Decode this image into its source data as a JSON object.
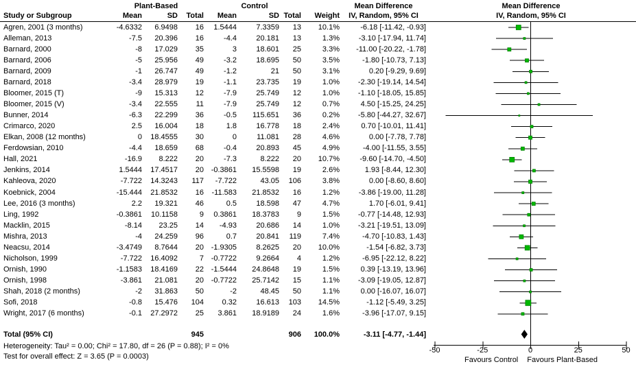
{
  "header": {
    "group1": "Plant-Based",
    "group2": "Control",
    "col_study": "Study or Subgroup",
    "col_mean": "Mean",
    "col_sd": "SD",
    "col_total": "Total",
    "col_weight": "Weight",
    "md_title": "Mean Difference",
    "md_subtitle": "IV, Random, 95% CI",
    "plot_title": "Mean Difference",
    "plot_subtitle": "IV, Random, 95% CI"
  },
  "table": {
    "rows": [
      {
        "study": "Agren, 2001 (3 months)",
        "mean_pb": "-4.6332",
        "sd_pb": "6.9498",
        "n_pb": "16",
        "mean_c": "1.5444",
        "sd_c": "7.3359",
        "n_c": "13",
        "weight": "10.1%",
        "md": "-6.18 [-11.42, -0.93]"
      },
      {
        "study": "Alleman, 2013",
        "mean_pb": "-7.5",
        "sd_pb": "20.396",
        "n_pb": "16",
        "mean_c": "-4.4",
        "sd_c": "20.181",
        "n_c": "13",
        "weight": "1.3%",
        "md": "-3.10 [-17.94, 11.74]"
      },
      {
        "study": "Barnard, 2000",
        "mean_pb": "-8",
        "sd_pb": "17.029",
        "n_pb": "35",
        "mean_c": "3",
        "sd_c": "18.601",
        "n_c": "25",
        "weight": "3.3%",
        "md": "-11.00 [-20.22, -1.78]"
      },
      {
        "study": "Barnard, 2006",
        "mean_pb": "-5",
        "sd_pb": "25.956",
        "n_pb": "49",
        "mean_c": "-3.2",
        "sd_c": "18.695",
        "n_c": "50",
        "weight": "3.5%",
        "md": "-1.80 [-10.73, 7.13]"
      },
      {
        "study": "Barnard, 2009",
        "mean_pb": "-1",
        "sd_pb": "26.747",
        "n_pb": "49",
        "mean_c": "-1.2",
        "sd_c": "21",
        "n_c": "50",
        "weight": "3.1%",
        "md": "0.20 [-9.29, 9.69]"
      },
      {
        "study": "Barnard, 2018",
        "mean_pb": "-3.4",
        "sd_pb": "28.979",
        "n_pb": "19",
        "mean_c": "-1.1",
        "sd_c": "23.735",
        "n_c": "19",
        "weight": "1.0%",
        "md": "-2.30 [-19.14, 14.54]"
      },
      {
        "study": "Bloomer, 2015 (T)",
        "mean_pb": "-9",
        "sd_pb": "15.313",
        "n_pb": "12",
        "mean_c": "-7.9",
        "sd_c": "25.749",
        "n_c": "12",
        "weight": "1.0%",
        "md": "-1.10 [-18.05, 15.85]"
      },
      {
        "study": "Bloomer, 2015 (V)",
        "mean_pb": "-3.4",
        "sd_pb": "22.555",
        "n_pb": "11",
        "mean_c": "-7.9",
        "sd_c": "25.749",
        "n_c": "12",
        "weight": "0.7%",
        "md": "4.50 [-15.25, 24.25]"
      },
      {
        "study": "Bunner, 2014",
        "mean_pb": "-6.3",
        "sd_pb": "22.299",
        "n_pb": "36",
        "mean_c": "-0.5",
        "sd_c": "115.651",
        "n_c": "36",
        "weight": "0.2%",
        "md": "-5.80 [-44.27, 32.67]"
      },
      {
        "study": "Crimarco, 2020",
        "mean_pb": "2.5",
        "sd_pb": "16.004",
        "n_pb": "18",
        "mean_c": "1.8",
        "sd_c": "16.778",
        "n_c": "18",
        "weight": "2.4%",
        "md": "0.70 [-10.01, 11.41]"
      },
      {
        "study": "Elkan, 2008 (12 months)",
        "mean_pb": "0",
        "sd_pb": "18.4555",
        "n_pb": "30",
        "mean_c": "0",
        "sd_c": "11.081",
        "n_c": "28",
        "weight": "4.6%",
        "md": "0.00 [-7.78, 7.78]"
      },
      {
        "study": "Ferdowsian, 2010",
        "mean_pb": "-4.4",
        "sd_pb": "18.659",
        "n_pb": "68",
        "mean_c": "-0.4",
        "sd_c": "20.893",
        "n_c": "45",
        "weight": "4.9%",
        "md": "-4.00 [-11.55, 3.55]"
      },
      {
        "study": "Hall, 2021",
        "mean_pb": "-16.9",
        "sd_pb": "8.222",
        "n_pb": "20",
        "mean_c": "-7.3",
        "sd_c": "8.222",
        "n_c": "20",
        "weight": "10.7%",
        "md": "-9.60 [-14.70, -4.50]"
      },
      {
        "study": "Jenkins, 2014",
        "mean_pb": "1.5444",
        "sd_pb": "17.4517",
        "n_pb": "20",
        "mean_c": "-0.3861",
        "sd_c": "15.5598",
        "n_c": "19",
        "weight": "2.6%",
        "md": "1.93 [-8.44, 12.30]"
      },
      {
        "study": "Kahleova, 2020",
        "mean_pb": "-7.722",
        "sd_pb": "14.3243",
        "n_pb": "117",
        "mean_c": "-7.722",
        "sd_c": "43.05",
        "n_c": "106",
        "weight": "3.8%",
        "md": "0.00 [-8.60, 8.60]"
      },
      {
        "study": "Koebnick, 2004",
        "mean_pb": "-15.444",
        "sd_pb": "21.8532",
        "n_pb": "16",
        "mean_c": "-11.583",
        "sd_c": "21.8532",
        "n_c": "16",
        "weight": "1.2%",
        "md": "-3.86 [-19.00, 11.28]"
      },
      {
        "study": "Lee, 2016 (3 months)",
        "mean_pb": "2.2",
        "sd_pb": "19.321",
        "n_pb": "46",
        "mean_c": "0.5",
        "sd_c": "18.598",
        "n_c": "47",
        "weight": "4.7%",
        "md": "1.70 [-6.01, 9.41]"
      },
      {
        "study": "Ling, 1992",
        "mean_pb": "-0.3861",
        "sd_pb": "10.1158",
        "n_pb": "9",
        "mean_c": "0.3861",
        "sd_c": "18.3783",
        "n_c": "9",
        "weight": "1.5%",
        "md": "-0.77 [-14.48, 12.93]"
      },
      {
        "study": "Macklin, 2015",
        "mean_pb": "-8.14",
        "sd_pb": "23.25",
        "n_pb": "14",
        "mean_c": "-4.93",
        "sd_c": "20.686",
        "n_c": "14",
        "weight": "1.0%",
        "md": "-3.21 [-19.51, 13.09]"
      },
      {
        "study": "Mishra, 2013",
        "mean_pb": "-4",
        "sd_pb": "24.259",
        "n_pb": "96",
        "mean_c": "0.7",
        "sd_c": "20.841",
        "n_c": "119",
        "weight": "7.4%",
        "md": "-4.70 [-10.83, 1.43]"
      },
      {
        "study": "Neacsu, 2014",
        "mean_pb": "-3.4749",
        "sd_pb": "8.7644",
        "n_pb": "20",
        "mean_c": "-1.9305",
        "sd_c": "8.2625",
        "n_c": "20",
        "weight": "10.0%",
        "md": "-1.54 [-6.82, 3.73]"
      },
      {
        "study": "Nicholson, 1999",
        "mean_pb": "-7.722",
        "sd_pb": "16.4092",
        "n_pb": "7",
        "mean_c": "-0.7722",
        "sd_c": "9.2664",
        "n_c": "4",
        "weight": "1.2%",
        "md": "-6.95 [-22.12, 8.22]"
      },
      {
        "study": "Ornish, 1990",
        "mean_pb": "-1.1583",
        "sd_pb": "18.4169",
        "n_pb": "22",
        "mean_c": "-1.5444",
        "sd_c": "24.8648",
        "n_c": "19",
        "weight": "1.5%",
        "md": "0.39 [-13.19, 13.96]"
      },
      {
        "study": "Ornish, 1998",
        "mean_pb": "-3.861",
        "sd_pb": "21.081",
        "n_pb": "20",
        "mean_c": "-0.7722",
        "sd_c": "25.7142",
        "n_c": "15",
        "weight": "1.1%",
        "md": "-3.09 [-19.05, 12.87]"
      },
      {
        "study": "Shah, 2018 (2 months)",
        "mean_pb": "-2",
        "sd_pb": "31.863",
        "n_pb": "50",
        "mean_c": "-2",
        "sd_c": "48.45",
        "n_c": "50",
        "weight": "1.1%",
        "md": "0.00 [-16.07, 16.07]"
      },
      {
        "study": "Sofi, 2018",
        "mean_pb": "-0.8",
        "sd_pb": "15.476",
        "n_pb": "104",
        "mean_c": "0.32",
        "sd_c": "16.613",
        "n_c": "103",
        "weight": "14.5%",
        "md": "-1.12 [-5.49, 3.25]"
      },
      {
        "study": "Wright, 2017 (6 months)",
        "mean_pb": "-0.1",
        "sd_pb": "27.2972",
        "n_pb": "25",
        "mean_c": "3.861",
        "sd_c": "18.9189",
        "n_c": "24",
        "weight": "1.6%",
        "md": "-3.96 [-17.07, 9.15]"
      }
    ]
  },
  "total": {
    "label": "Total (95% CI)",
    "n_pb": "945",
    "n_c": "906",
    "weight": "100.0%",
    "md": "-3.11 [-4.77, -1.44]"
  },
  "footnotes": {
    "heterogeneity": "Heterogeneity: Tau² = 0.00; Chi² = 17.80, df = 26 (P = 0.88); I² = 0%",
    "overall": "Test for overall effect: Z = 3.65 (P = 0.0003)"
  },
  "colors": {
    "square_fill": "#00b800",
    "square_border": "#008000",
    "diamond": "#000000",
    "line": "#000000"
  },
  "chart_data": {
    "type": "forest",
    "title": "Mean Difference",
    "subtitle": "IV, Random, 95% CI",
    "model": "IV, Random, 95% CI",
    "axis": {
      "min": -50,
      "max": 50,
      "ticks": [
        -50,
        -25,
        0,
        25,
        50
      ],
      "favours_left": "Favours Control",
      "favours_right": "Favours Plant-Based"
    },
    "studies": [
      {
        "name": "Agren, 2001 (3 months)",
        "md": -6.18,
        "lo": -11.42,
        "hi": -0.93,
        "weight": 10.1
      },
      {
        "name": "Alleman, 2013",
        "md": -3.1,
        "lo": -17.94,
        "hi": 11.74,
        "weight": 1.3
      },
      {
        "name": "Barnard, 2000",
        "md": -11.0,
        "lo": -20.22,
        "hi": -1.78,
        "weight": 3.3
      },
      {
        "name": "Barnard, 2006",
        "md": -1.8,
        "lo": -10.73,
        "hi": 7.13,
        "weight": 3.5
      },
      {
        "name": "Barnard, 2009",
        "md": 0.2,
        "lo": -9.29,
        "hi": 9.69,
        "weight": 3.1
      },
      {
        "name": "Barnard, 2018",
        "md": -2.3,
        "lo": -19.14,
        "hi": 14.54,
        "weight": 1.0
      },
      {
        "name": "Bloomer, 2015 (T)",
        "md": -1.1,
        "lo": -18.05,
        "hi": 15.85,
        "weight": 1.0
      },
      {
        "name": "Bloomer, 2015 (V)",
        "md": 4.5,
        "lo": -15.25,
        "hi": 24.25,
        "weight": 0.7
      },
      {
        "name": "Bunner, 2014",
        "md": -5.8,
        "lo": -44.27,
        "hi": 32.67,
        "weight": 0.2
      },
      {
        "name": "Crimarco, 2020",
        "md": 0.7,
        "lo": -10.01,
        "hi": 11.41,
        "weight": 2.4
      },
      {
        "name": "Elkan, 2008 (12 months)",
        "md": 0.0,
        "lo": -7.78,
        "hi": 7.78,
        "weight": 4.6
      },
      {
        "name": "Ferdowsian, 2010",
        "md": -4.0,
        "lo": -11.55,
        "hi": 3.55,
        "weight": 4.9
      },
      {
        "name": "Hall, 2021",
        "md": -9.6,
        "lo": -14.7,
        "hi": -4.5,
        "weight": 10.7
      },
      {
        "name": "Jenkins, 2014",
        "md": 1.93,
        "lo": -8.44,
        "hi": 12.3,
        "weight": 2.6
      },
      {
        "name": "Kahleova, 2020",
        "md": 0.0,
        "lo": -8.6,
        "hi": 8.6,
        "weight": 3.8
      },
      {
        "name": "Koebnick, 2004",
        "md": -3.86,
        "lo": -19.0,
        "hi": 11.28,
        "weight": 1.2
      },
      {
        "name": "Lee, 2016 (3 months)",
        "md": 1.7,
        "lo": -6.01,
        "hi": 9.41,
        "weight": 4.7
      },
      {
        "name": "Ling, 1992",
        "md": -0.77,
        "lo": -14.48,
        "hi": 12.93,
        "weight": 1.5
      },
      {
        "name": "Macklin, 2015",
        "md": -3.21,
        "lo": -19.51,
        "hi": 13.09,
        "weight": 1.0
      },
      {
        "name": "Mishra, 2013",
        "md": -4.7,
        "lo": -10.83,
        "hi": 1.43,
        "weight": 7.4
      },
      {
        "name": "Neacsu, 2014",
        "md": -1.54,
        "lo": -6.82,
        "hi": 3.73,
        "weight": 10.0
      },
      {
        "name": "Nicholson, 1999",
        "md": -6.95,
        "lo": -22.12,
        "hi": 8.22,
        "weight": 1.2
      },
      {
        "name": "Ornish, 1990",
        "md": 0.39,
        "lo": -13.19,
        "hi": 13.96,
        "weight": 1.5
      },
      {
        "name": "Ornish, 1998",
        "md": -3.09,
        "lo": -19.05,
        "hi": 12.87,
        "weight": 1.1
      },
      {
        "name": "Shah, 2018 (2 months)",
        "md": 0.0,
        "lo": -16.07,
        "hi": 16.07,
        "weight": 1.1
      },
      {
        "name": "Sofi, 2018",
        "md": -1.12,
        "lo": -5.49,
        "hi": 3.25,
        "weight": 14.5
      },
      {
        "name": "Wright, 2017 (6 months)",
        "md": -3.96,
        "lo": -17.07,
        "hi": 9.15,
        "weight": 1.6
      }
    ],
    "total": {
      "name": "Total (95% CI)",
      "md": -3.11,
      "lo": -4.77,
      "hi": -1.44,
      "weight": 100.0
    }
  }
}
